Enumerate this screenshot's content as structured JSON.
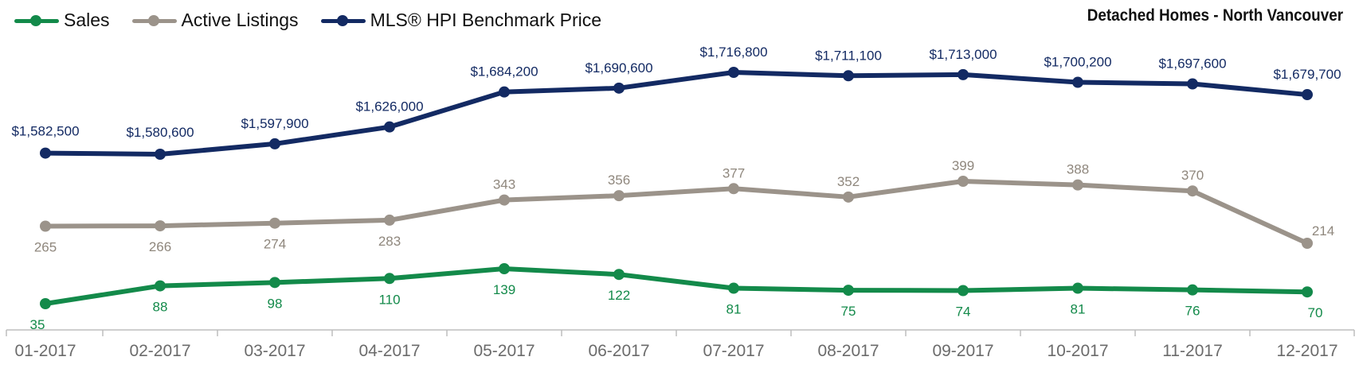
{
  "chart_data": {
    "type": "line",
    "title": "Detached Homes - North Vancouver",
    "categories": [
      "01-2017",
      "02-2017",
      "03-2017",
      "04-2017",
      "05-2017",
      "06-2017",
      "07-2017",
      "08-2017",
      "09-2017",
      "10-2017",
      "11-2017",
      "12-2017"
    ],
    "series": [
      {
        "name": "Sales",
        "color": "#138a4a",
        "values": [
          35,
          88,
          98,
          110,
          139,
          122,
          81,
          75,
          74,
          81,
          76,
          70
        ],
        "labels": [
          "35",
          "88",
          "98",
          "110",
          "139",
          "122",
          "81",
          "75",
          "74",
          "81",
          "76",
          "70"
        ]
      },
      {
        "name": "Active Listings",
        "color": "#9b938a",
        "values": [
          265,
          266,
          274,
          283,
          343,
          356,
          377,
          352,
          399,
          388,
          370,
          214
        ],
        "labels": [
          "265",
          "266",
          "274",
          "283",
          "343",
          "356",
          "377",
          "352",
          "399",
          "388",
          "370",
          "214"
        ]
      },
      {
        "name": "MLS® HPI Benchmark Price",
        "color": "#132a63",
        "values": [
          1582500,
          1580600,
          1597900,
          1626000,
          1684200,
          1690600,
          1716800,
          1711100,
          1713000,
          1700200,
          1697600,
          1679700
        ],
        "labels": [
          "$1,582,500",
          "$1,580,600",
          "$1,597,900",
          "$1,626,000",
          "$1,684,200",
          "$1,690,600",
          "$1,716,800",
          "$1,711,100",
          "$1,713,000",
          "$1,700,200",
          "$1,697,600",
          "$1,679,700"
        ]
      }
    ],
    "legend_position": "top-left",
    "grid": false
  }
}
